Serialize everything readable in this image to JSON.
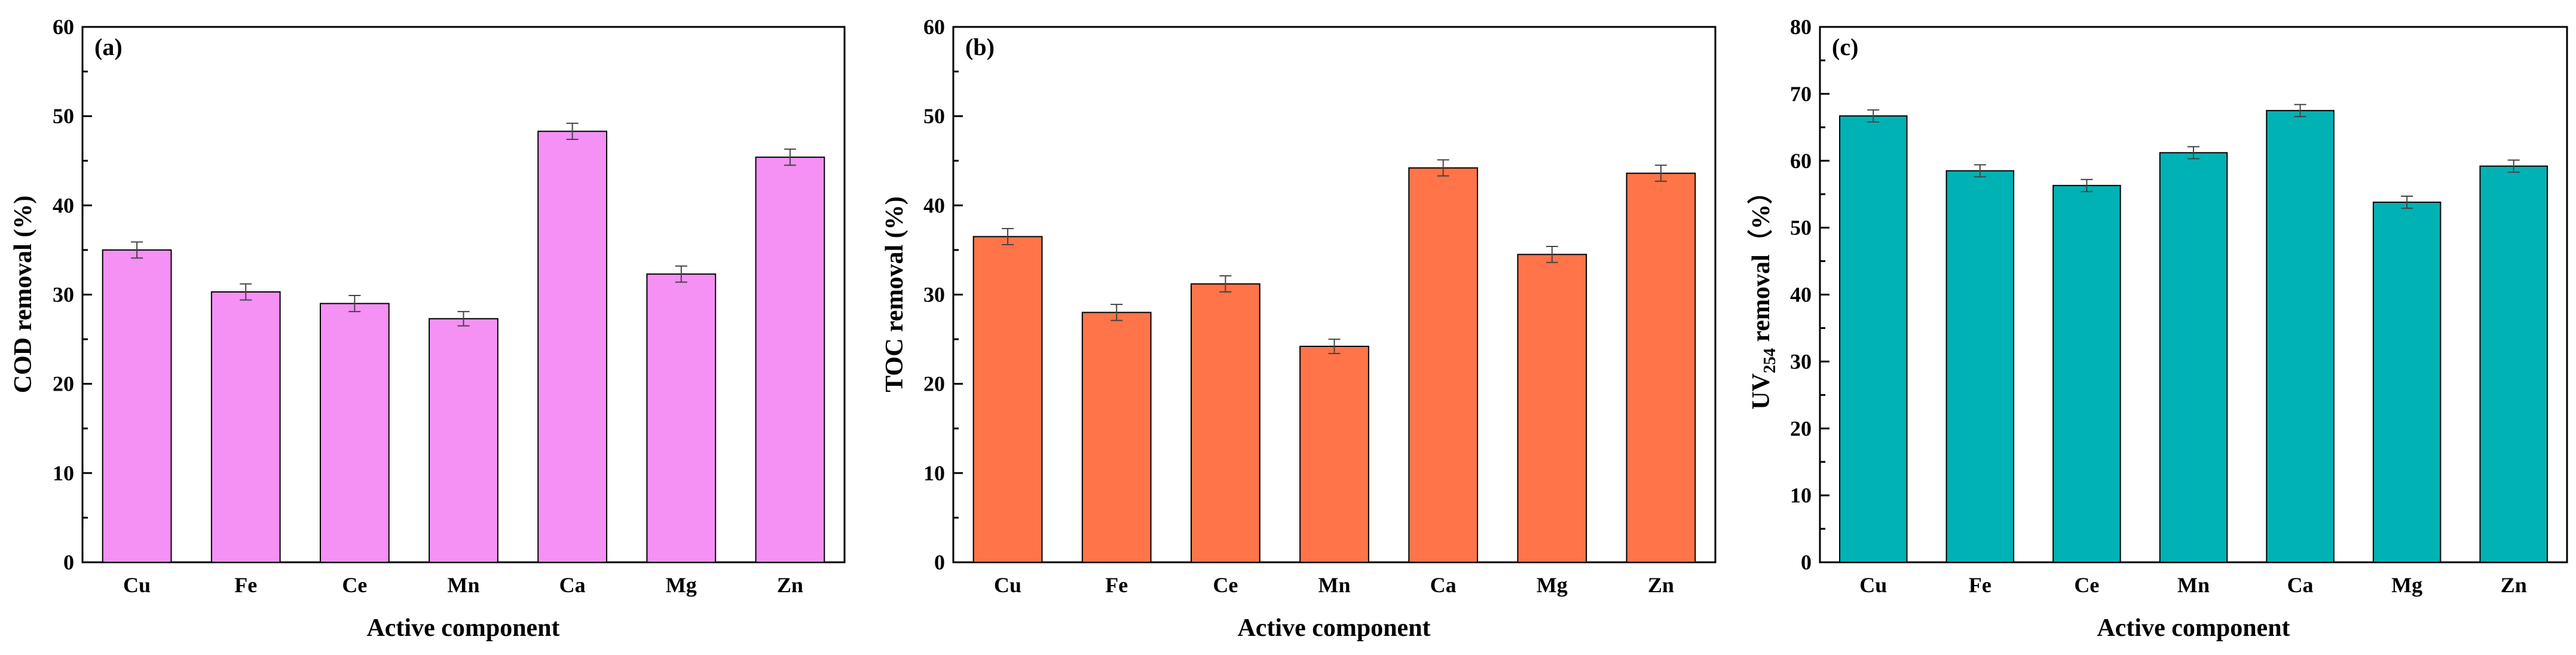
{
  "chart_data": [
    {
      "type": "bar",
      "panel_label": "(a)",
      "color": "#F590F5",
      "categories": [
        "Cu",
        "Fe",
        "Ce",
        "Mn",
        "Ca",
        "Mg",
        "Zn"
      ],
      "values": [
        35.0,
        30.3,
        29.0,
        27.3,
        48.3,
        32.3,
        45.4
      ],
      "errors": [
        0.9,
        0.9,
        0.9,
        0.8,
        0.9,
        0.9,
        0.9
      ],
      "ylim": [
        0,
        60
      ],
      "yticks": [
        0,
        10,
        20,
        30,
        40,
        50,
        60
      ],
      "ylabel": "COD removal (%)",
      "xlabel": "Active component"
    },
    {
      "type": "bar",
      "panel_label": "(b)",
      "color": "#FF7448",
      "categories": [
        "Cu",
        "Fe",
        "Ce",
        "Mn",
        "Ca",
        "Mg",
        "Zn"
      ],
      "values": [
        36.5,
        28.0,
        31.2,
        24.2,
        44.2,
        34.5,
        43.6
      ],
      "errors": [
        0.9,
        0.9,
        0.9,
        0.8,
        0.9,
        0.9,
        0.9
      ],
      "ylim": [
        0,
        60
      ],
      "yticks": [
        0,
        10,
        20,
        30,
        40,
        50,
        60
      ],
      "ylabel": "TOC removal (%)",
      "xlabel": "Active component"
    },
    {
      "type": "bar",
      "panel_label": "(c)",
      "color": "#00B2B4",
      "categories": [
        "Cu",
        "Fe",
        "Ce",
        "Mn",
        "Ca",
        "Mg",
        "Zn"
      ],
      "values": [
        66.7,
        58.5,
        56.3,
        61.2,
        67.5,
        53.8,
        59.2
      ],
      "errors": [
        0.9,
        0.9,
        0.9,
        0.9,
        0.9,
        0.9,
        0.9
      ],
      "ylim": [
        0,
        80
      ],
      "yticks": [
        0,
        10,
        20,
        30,
        40,
        50,
        60,
        70,
        80
      ],
      "ylabel_main": "UV",
      "ylabel_sub": "254",
      "ylabel_rest": " removal（%）",
      "xlabel": "Active component"
    }
  ]
}
